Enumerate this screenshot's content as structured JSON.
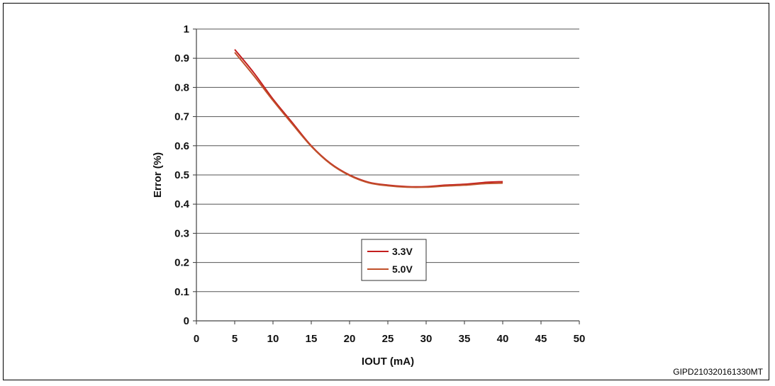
{
  "chart_data": {
    "type": "line",
    "xlabel": "IOUT (mA)",
    "ylabel": "Error (%)",
    "xlim": [
      0,
      50
    ],
    "ylim": [
      0,
      1
    ],
    "x_ticks": [
      "0",
      "5",
      "10",
      "15",
      "20",
      "25",
      "30",
      "35",
      "40",
      "45",
      "50"
    ],
    "y_ticks": [
      "0",
      "0.1",
      "0.2",
      "0.3",
      "0.4",
      "0.5",
      "0.6",
      "0.7",
      "0.8",
      "0.9",
      "1"
    ],
    "grid": "horizontal",
    "legend_position": "bottom-left-center",
    "series": [
      {
        "name": "3.3V",
        "color": "#c41e1e",
        "x": [
          5,
          7.5,
          10,
          12.5,
          15,
          17.5,
          20,
          22.5,
          25,
          27.5,
          30,
          32.5,
          35,
          37.5,
          40
        ],
        "y": [
          0.93,
          0.85,
          0.76,
          0.68,
          0.6,
          0.54,
          0.5,
          0.475,
          0.465,
          0.46,
          0.46,
          0.465,
          0.468,
          0.474,
          0.477
        ]
      },
      {
        "name": "5.0V",
        "color": "#c0502a",
        "x": [
          5,
          7.5,
          10,
          12.5,
          15,
          17.5,
          20,
          22.5,
          25,
          27.5,
          30,
          32.5,
          35,
          37.5,
          40
        ],
        "y": [
          0.92,
          0.84,
          0.755,
          0.675,
          0.598,
          0.538,
          0.498,
          0.473,
          0.463,
          0.458,
          0.458,
          0.462,
          0.465,
          0.47,
          0.472
        ]
      }
    ]
  },
  "figure_code": "GIPD210320161330MT"
}
